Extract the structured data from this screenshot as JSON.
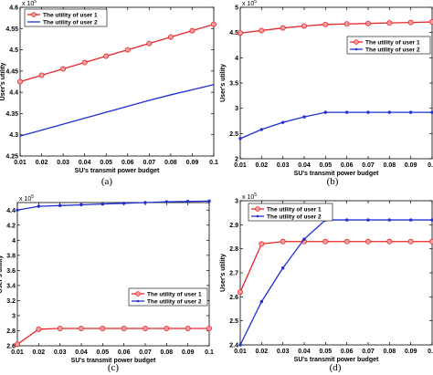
{
  "chart_data": [
    {
      "type": "line",
      "caption": "(a)",
      "exponent_label": "x 10^5",
      "xlabel": "SU's transmit power budget",
      "ylabel": "User's utility",
      "xlim": [
        0.01,
        0.1
      ],
      "ylim": [
        4.25,
        4.6
      ],
      "xticks": [
        0.01,
        0.02,
        0.03,
        0.04,
        0.05,
        0.06,
        0.07,
        0.08,
        0.09,
        0.1
      ],
      "xtick_labels": [
        "0.01",
        "0.02",
        "0.03",
        "0.04",
        "0.05",
        "0.06",
        "0.07",
        "0.08",
        "0.09",
        "0.1"
      ],
      "yticks": [
        4.25,
        4.3,
        4.35,
        4.4,
        4.45,
        4.5,
        4.55,
        4.6
      ],
      "ytick_labels": [
        "4.25",
        "4.3",
        "4.35",
        "4.4",
        "4.45",
        "4.5",
        "4.55",
        "4.6"
      ],
      "legend_position": "top-left",
      "x": [
        0.01,
        0.02,
        0.03,
        0.04,
        0.05,
        0.06,
        0.07,
        0.08,
        0.09,
        0.1
      ],
      "series": [
        {
          "name": "The utility of user 1",
          "color": "#e8262b",
          "marker": "circle",
          "values": [
            4.425,
            4.44,
            4.455,
            4.47,
            4.485,
            4.5,
            4.515,
            4.53,
            4.545,
            4.56
          ]
        },
        {
          "name": "The utility of user 2",
          "color": "#1f2fd1",
          "marker": "none",
          "values": [
            4.297,
            4.311,
            4.325,
            4.339,
            4.353,
            4.367,
            4.381,
            4.394,
            4.406,
            4.418
          ]
        }
      ]
    },
    {
      "type": "line",
      "caption": "(b)",
      "exponent_label": "x 10^5",
      "xlabel": "SU's transmit power budget",
      "ylabel": "User's utility",
      "xlim": [
        0.01,
        0.1
      ],
      "ylim": [
        2,
        5
      ],
      "xticks": [
        0.01,
        0.02,
        0.03,
        0.04,
        0.05,
        0.06,
        0.07,
        0.08,
        0.09,
        0.1
      ],
      "xtick_labels": [
        "0.01",
        "0.02",
        "0.03",
        "0.04",
        "0.05",
        "0.06",
        "0.07",
        "0.08",
        "0.09",
        "0.1"
      ],
      "yticks": [
        2,
        2.5,
        3,
        3.5,
        4,
        4.5,
        5
      ],
      "ytick_labels": [
        "2",
        "2.5",
        "3",
        "3.5",
        "4",
        "4.5",
        "5"
      ],
      "legend_position": "upper-right",
      "x": [
        0.01,
        0.02,
        0.03,
        0.04,
        0.05,
        0.06,
        0.07,
        0.08,
        0.09,
        0.1
      ],
      "series": [
        {
          "name": "The utility of user 1",
          "color": "#e8262b",
          "marker": "circle",
          "values": [
            4.49,
            4.54,
            4.59,
            4.63,
            4.66,
            4.67,
            4.68,
            4.69,
            4.7,
            4.71
          ]
        },
        {
          "name": "The utility of user 2",
          "color": "#1f2fd1",
          "marker": "dot",
          "values": [
            2.4,
            2.58,
            2.72,
            2.83,
            2.92,
            2.92,
            2.92,
            2.92,
            2.92,
            2.92
          ]
        }
      ]
    },
    {
      "type": "line",
      "caption": "(c)",
      "exponent_label": "x 10^5",
      "xlabel": "SU's transmit power budget",
      "ylabel": "User's utility",
      "xlim": [
        0.01,
        0.1
      ],
      "ylim": [
        2.6,
        4.5
      ],
      "xticks": [
        0.01,
        0.02,
        0.03,
        0.04,
        0.05,
        0.06,
        0.07,
        0.08,
        0.09,
        0.1
      ],
      "xtick_labels": [
        "0.01",
        "0.02",
        "0.03",
        "0.04",
        "0.05",
        "0.06",
        "0.07",
        "0.08",
        "0.09",
        "0.1"
      ],
      "yticks": [
        2.6,
        2.8,
        3.0,
        3.2,
        3.4,
        3.6,
        3.8,
        4.0,
        4.2,
        4.4
      ],
      "ytick_labels": [
        "2.6",
        "2.8",
        "3",
        "3.2",
        "3.4",
        "3.6",
        "3.8",
        "4",
        "4.2",
        "4.4"
      ],
      "legend_position": "center-right",
      "x": [
        0.01,
        0.02,
        0.03,
        0.04,
        0.05,
        0.06,
        0.07,
        0.08,
        0.09,
        0.1
      ],
      "series": [
        {
          "name": "The utility of user 1",
          "color": "#e8262b",
          "marker": "circle",
          "values": [
            2.62,
            2.82,
            2.83,
            2.83,
            2.83,
            2.83,
            2.83,
            2.83,
            2.83,
            2.83
          ]
        },
        {
          "name": "The utility of user 2",
          "color": "#1f2fd1",
          "marker": "dot",
          "values": [
            4.4,
            4.45,
            4.46,
            4.47,
            4.48,
            4.49,
            4.5,
            4.51,
            4.515,
            4.52
          ]
        }
      ]
    },
    {
      "type": "line",
      "caption": "(d)",
      "exponent_label": "x 10^5",
      "xlabel": "SU's transmit power budget",
      "ylabel": "User's utility",
      "xlim": [
        0.01,
        0.1
      ],
      "ylim": [
        2.4,
        3.0
      ],
      "xticks": [
        0.01,
        0.02,
        0.03,
        0.04,
        0.05,
        0.06,
        0.07,
        0.08,
        0.09,
        0.1
      ],
      "xtick_labels": [
        "0.01",
        "0.02",
        "0.03",
        "0.04",
        "0.05",
        "0.06",
        "0.07",
        "0.08",
        "0.09",
        "0.1"
      ],
      "yticks": [
        2.4,
        2.5,
        2.6,
        2.7,
        2.8,
        2.9,
        3.0
      ],
      "ytick_labels": [
        "2.4",
        "2.5",
        "2.6",
        "2.7",
        "2.8",
        "2.9",
        "3"
      ],
      "legend_position": "top-left",
      "x": [
        0.01,
        0.02,
        0.03,
        0.04,
        0.05,
        0.06,
        0.07,
        0.08,
        0.09,
        0.1
      ],
      "series": [
        {
          "name": "The utility of user 1",
          "color": "#e8262b",
          "marker": "circle",
          "values": [
            2.62,
            2.82,
            2.83,
            2.83,
            2.83,
            2.83,
            2.83,
            2.83,
            2.83,
            2.83
          ]
        },
        {
          "name": "The utility of user 2",
          "color": "#1f2fd1",
          "marker": "dot",
          "values": [
            2.4,
            2.58,
            2.72,
            2.84,
            2.92,
            2.92,
            2.92,
            2.92,
            2.92,
            2.92
          ]
        }
      ]
    }
  ]
}
